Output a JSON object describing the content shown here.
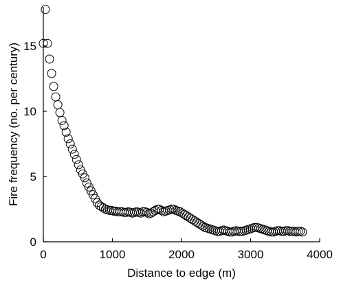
{
  "chart_data": {
    "type": "scatter",
    "title": "",
    "xlabel": "Distance to edge (m)",
    "ylabel": "Fire frequency (no. per century)",
    "xlim": [
      0,
      4000
    ],
    "ylim": [
      0,
      18
    ],
    "xticks": [
      0,
      1000,
      2000,
      3000,
      4000
    ],
    "yticks": [
      0,
      5,
      10,
      15
    ],
    "xtick_labels": [
      "0",
      "1000",
      "2000",
      "3000",
      "4000"
    ],
    "ytick_labels": [
      "0",
      "5",
      "10",
      "15"
    ],
    "grid": false,
    "legend": "none",
    "marker": "open-circle",
    "series": [
      {
        "x": [
          0,
          30,
          60,
          90,
          120,
          150,
          180,
          210,
          240,
          270,
          300,
          330,
          360,
          390,
          420,
          450,
          480,
          510,
          540,
          570,
          600,
          630,
          660,
          690,
          720,
          750,
          780,
          810,
          840,
          870,
          900,
          930,
          960,
          990,
          1020,
          1050,
          1080,
          1110,
          1140,
          1170,
          1200,
          1230,
          1260,
          1290,
          1320,
          1350,
          1380,
          1410,
          1440,
          1470,
          1500,
          1530,
          1560,
          1590,
          1620,
          1650,
          1680,
          1710,
          1740,
          1770,
          1800,
          1830,
          1860,
          1890,
          1920,
          1950,
          1980,
          2010,
          2040,
          2070,
          2100,
          2130,
          2160,
          2190,
          2220,
          2250,
          2280,
          2310,
          2340,
          2370,
          2400,
          2430,
          2460,
          2490,
          2520,
          2550,
          2580,
          2610,
          2640,
          2670,
          2700,
          2730,
          2760,
          2790,
          2820,
          2850,
          2880,
          2910,
          2940,
          2970,
          3000,
          3030,
          3060,
          3090,
          3120,
          3150,
          3180,
          3210,
          3240,
          3270,
          3300,
          3330,
          3360,
          3390,
          3420,
          3450,
          3480,
          3510,
          3540,
          3570,
          3600,
          3630,
          3660,
          3690,
          3720,
          3750
        ],
        "y": [
          15.2,
          17.8,
          15.2,
          14.0,
          12.9,
          11.9,
          11.1,
          10.5,
          9.9,
          9.3,
          8.9,
          8.4,
          7.9,
          7.5,
          7.1,
          6.7,
          6.3,
          5.9,
          5.5,
          5.2,
          4.9,
          4.5,
          4.2,
          3.9,
          3.6,
          3.3,
          3.0,
          2.8,
          2.7,
          2.6,
          2.5,
          2.45,
          2.4,
          2.4,
          2.35,
          2.35,
          2.3,
          2.3,
          2.3,
          2.25,
          2.25,
          2.3,
          2.25,
          2.2,
          2.25,
          2.3,
          2.25,
          2.2,
          2.3,
          2.3,
          2.25,
          2.15,
          2.2,
          2.3,
          2.4,
          2.5,
          2.5,
          2.4,
          2.3,
          2.35,
          2.4,
          2.45,
          2.5,
          2.5,
          2.4,
          2.35,
          2.3,
          2.2,
          2.1,
          2.0,
          1.9,
          1.8,
          1.7,
          1.6,
          1.5,
          1.4,
          1.3,
          1.2,
          1.1,
          1.05,
          1.0,
          0.95,
          0.9,
          0.85,
          0.8,
          0.8,
          0.85,
          0.9,
          0.85,
          0.8,
          0.75,
          0.75,
          0.8,
          0.85,
          0.8,
          0.8,
          0.8,
          0.85,
          0.9,
          0.95,
          1.0,
          1.05,
          1.1,
          1.1,
          1.05,
          1.0,
          0.95,
          0.9,
          0.85,
          0.8,
          0.75,
          0.75,
          0.8,
          0.85,
          0.85,
          0.8,
          0.8,
          0.85,
          0.85,
          0.8,
          0.8,
          0.8,
          0.75,
          0.8,
          0.8,
          0.75
        ]
      }
    ]
  }
}
